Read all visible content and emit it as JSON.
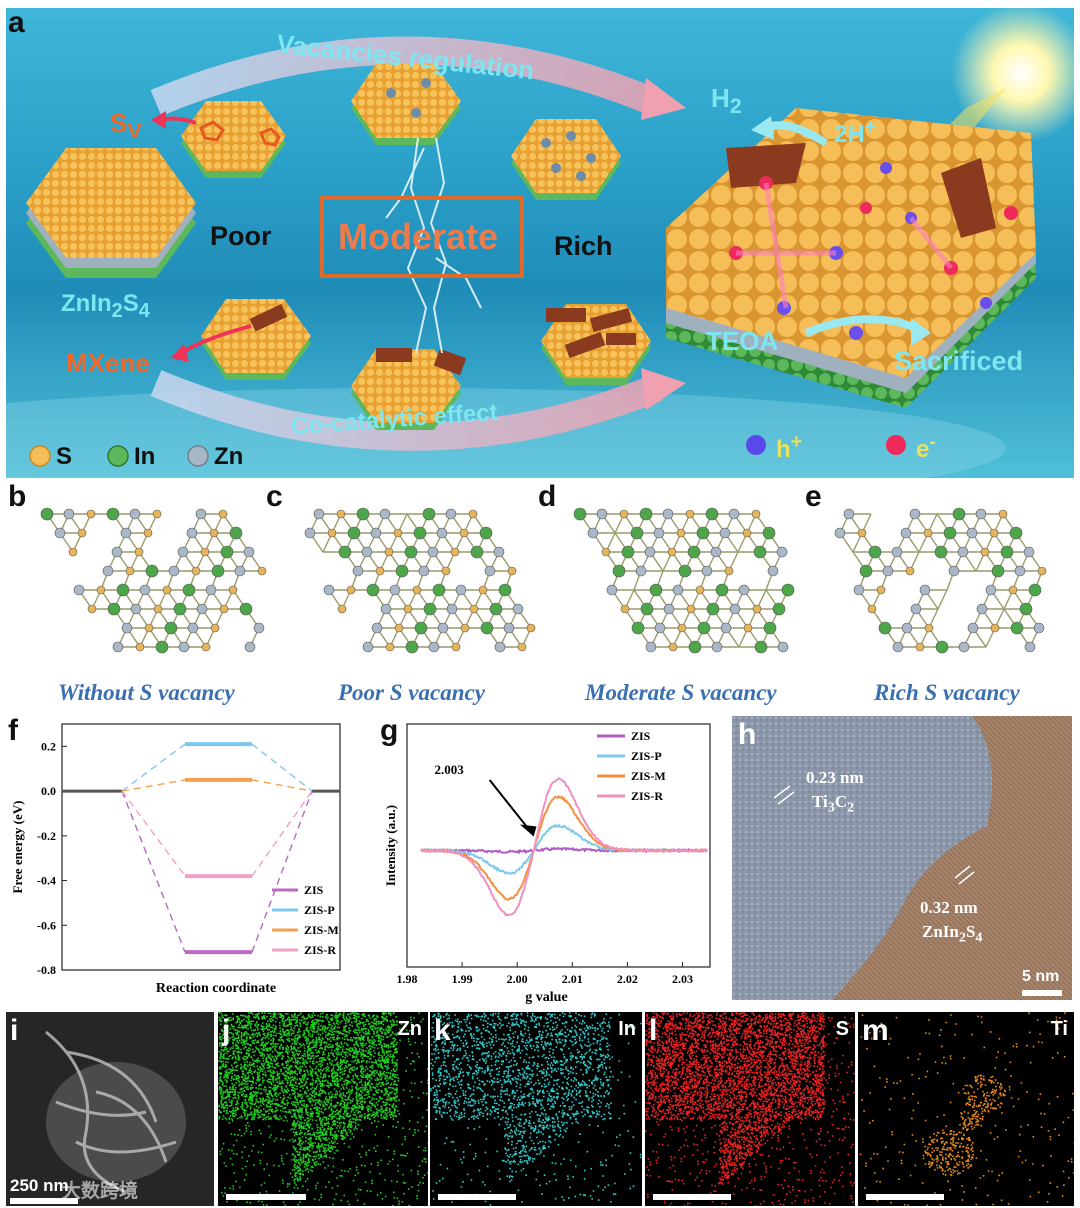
{
  "panel_labels": {
    "a": "a",
    "b": "b",
    "c": "c",
    "d": "d",
    "e": "e",
    "f": "f",
    "g": "g",
    "h": "h",
    "i": "i",
    "j": "j",
    "k": "k",
    "l": "l",
    "m": "m"
  },
  "panel_a": {
    "vacancies_regulation": "Vacancies regulation",
    "co_catalytic_effect": "Co-catalytic effect",
    "sv_label": "Sv",
    "poor": "Poor",
    "moderate": "Moderate",
    "rich": "Rich",
    "zis_label": "ZnIn2S4",
    "mxene": "MXene",
    "h2": "H2",
    "two_h_plus": "2H+",
    "teoa": "TEOA",
    "sacrificed": "Sacrificed",
    "legend": {
      "s": "S",
      "in": "In",
      "zn": "Zn",
      "hole": "h+",
      "electron": "e-"
    },
    "colors": {
      "s": "#f2b13c",
      "in": "#4ea64a",
      "zn": "#9fb0bf",
      "mxene": "#8a3a1e",
      "moderate_box": "#e06a2a"
    }
  },
  "structure_captions": {
    "b": "Without S vacancy",
    "c": "Poor S vacancy",
    "d": "Moderate S vacancy",
    "e": "Rich S vacancy"
  },
  "chart_data": [
    {
      "panel": "f",
      "type": "line",
      "xlabel": "Reaction coordinate",
      "ylabel": "Free energy (eV)",
      "ylim": [
        -0.8,
        0.3
      ],
      "yticks": [
        "0.2",
        "0.0",
        "-0.2",
        "-0.4",
        "-0.6",
        "-0.8"
      ],
      "series": [
        {
          "name": "ZIS",
          "color": "#b86bc0",
          "values": [
            0,
            -0.72,
            0
          ]
        },
        {
          "name": "ZIS-P",
          "color": "#7dc8ec",
          "values": [
            0,
            0.21,
            0
          ]
        },
        {
          "name": "ZIS-M",
          "color": "#f4a050",
          "values": [
            0,
            0.05,
            0
          ]
        },
        {
          "name": "ZIS-R",
          "color": "#f2a0c8",
          "values": [
            0,
            -0.38,
            0
          ]
        }
      ]
    },
    {
      "panel": "g",
      "type": "line",
      "xlabel": "g value",
      "ylabel": "Intensity (a.u.)",
      "xlim": [
        1.98,
        2.035
      ],
      "xticks": [
        "1.98",
        "1.99",
        "2.00",
        "2.01",
        "2.02",
        "2.03"
      ],
      "annotation": "2.003",
      "series": [
        {
          "name": "ZIS",
          "color": "#b05cc0",
          "amplitude": 0.02
        },
        {
          "name": "ZIS-P",
          "color": "#7dc8ec",
          "amplitude": 0.35
        },
        {
          "name": "ZIS-M",
          "color": "#f49040",
          "amplitude": 0.75
        },
        {
          "name": "ZIS-R",
          "color": "#f090c0",
          "amplitude": 1.0
        }
      ]
    }
  ],
  "panel_h": {
    "spacing1": "0.23 nm",
    "phase1": "Ti3C2",
    "spacing2": "0.32 nm",
    "phase2": "ZnIn2S4",
    "scale": "5 nm"
  },
  "eds": {
    "i_scale": "250 nm",
    "watermark": "大数跨境",
    "elements": [
      {
        "panel": "j",
        "label": "Zn",
        "color": "#22cc22"
      },
      {
        "panel": "k",
        "label": "In",
        "color": "#33cccc"
      },
      {
        "panel": "l",
        "label": "S",
        "color": "#ee2222"
      },
      {
        "panel": "m",
        "label": "Ti",
        "color": "#e88a1a"
      }
    ]
  }
}
